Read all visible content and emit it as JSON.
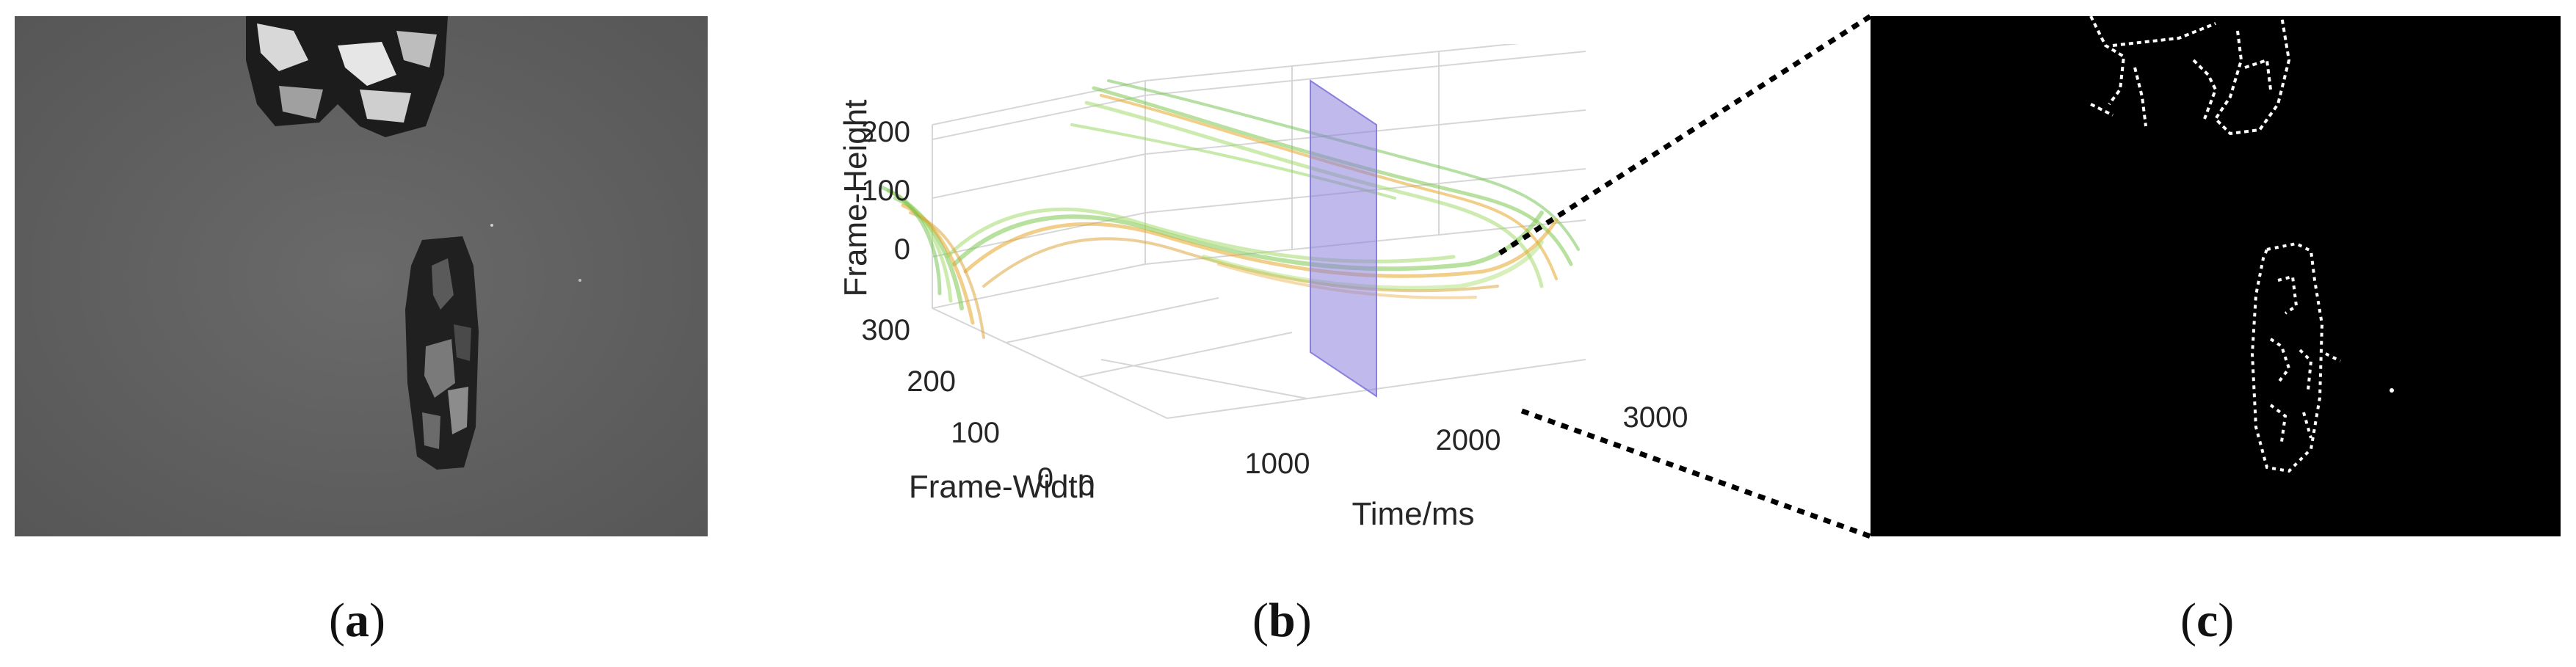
{
  "figure": {
    "panels": [
      {
        "id": "a",
        "caption": "a",
        "kind": "grayscale camera frame"
      },
      {
        "id": "b",
        "caption": "b",
        "kind": "3D event trajectory plot"
      },
      {
        "id": "c",
        "caption": "c",
        "kind": "binary event slice"
      }
    ]
  },
  "chart_data": {
    "type": "scatter",
    "axes": {
      "x": {
        "label": "Time/ms",
        "ticks": [
          "0",
          "1000",
          "2000",
          "3000"
        ],
        "range": [
          0,
          3000
        ]
      },
      "y": {
        "label": "Frame-Width",
        "ticks": [
          "0",
          "100",
          "200",
          "300"
        ],
        "range": [
          0,
          340
        ]
      },
      "z": {
        "label": "Frame-Height",
        "ticks": [
          "0",
          "100",
          "200"
        ],
        "range": [
          0,
          260
        ]
      }
    },
    "slice_plane_time_ms": 1800,
    "colors": {
      "green": "#7ec850",
      "orange": "#e6a628",
      "plane": "#8a7fdc"
    },
    "grid": true
  }
}
